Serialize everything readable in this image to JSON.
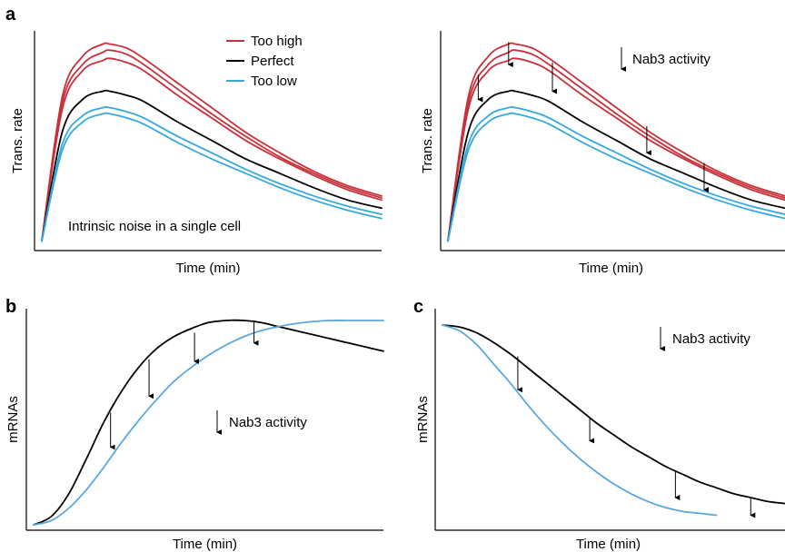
{
  "colors": {
    "too_high": "#c8313a",
    "perfect": "#000000",
    "too_low": "#35a8de",
    "reduced": "#5aa7dc",
    "axis": "#000000"
  },
  "chart_data": [
    {
      "panel": "a",
      "type": "line",
      "xlabel": "Time (min)",
      "ylabel": "Trans. rate",
      "legend_position": "top-right",
      "legend": [
        {
          "label": "Too high",
          "color": "#c8313a"
        },
        {
          "label": "Perfect",
          "color": "#000000"
        },
        {
          "label": "Too low",
          "color": "#35a8de"
        }
      ],
      "annotation": "Intrinsic noise in a single cell",
      "x_range": [
        0,
        1
      ],
      "y_range": [
        0,
        1
      ],
      "series": [
        {
          "group": "Too high",
          "color": "#c8313a",
          "x": [
            0,
            0.06,
            0.12,
            0.18,
            0.2,
            0.25,
            0.3,
            0.4,
            0.5,
            0.6,
            0.7,
            0.8,
            0.9,
            1.0
          ],
          "y": [
            0.02,
            0.72,
            0.92,
            0.98,
            0.98,
            0.96,
            0.91,
            0.79,
            0.67,
            0.55,
            0.45,
            0.36,
            0.29,
            0.24
          ]
        },
        {
          "group": "Too high",
          "color": "#c8313a",
          "x": [
            0,
            0.06,
            0.12,
            0.18,
            0.2,
            0.25,
            0.3,
            0.4,
            0.5,
            0.6,
            0.7,
            0.8,
            0.9,
            1.0
          ],
          "y": [
            0.02,
            0.69,
            0.88,
            0.94,
            0.95,
            0.93,
            0.88,
            0.76,
            0.64,
            0.53,
            0.43,
            0.35,
            0.28,
            0.23
          ]
        },
        {
          "group": "Too high",
          "color": "#c8313a",
          "x": [
            0,
            0.06,
            0.12,
            0.18,
            0.2,
            0.25,
            0.3,
            0.4,
            0.5,
            0.6,
            0.7,
            0.8,
            0.9,
            1.0
          ],
          "y": [
            0.02,
            0.66,
            0.85,
            0.9,
            0.91,
            0.89,
            0.85,
            0.73,
            0.62,
            0.51,
            0.42,
            0.34,
            0.27,
            0.22
          ]
        },
        {
          "group": "Perfect",
          "color": "#000000",
          "x": [
            0,
            0.06,
            0.12,
            0.18,
            0.2,
            0.25,
            0.3,
            0.4,
            0.5,
            0.6,
            0.7,
            0.8,
            0.9,
            1.0
          ],
          "y": [
            0.02,
            0.55,
            0.71,
            0.75,
            0.75,
            0.73,
            0.7,
            0.6,
            0.51,
            0.42,
            0.35,
            0.28,
            0.22,
            0.18
          ]
        },
        {
          "group": "Too low",
          "color": "#35a8de",
          "x": [
            0,
            0.06,
            0.12,
            0.18,
            0.2,
            0.25,
            0.3,
            0.4,
            0.5,
            0.6,
            0.7,
            0.8,
            0.9,
            1.0
          ],
          "y": [
            0.02,
            0.49,
            0.63,
            0.67,
            0.67,
            0.65,
            0.62,
            0.53,
            0.45,
            0.37,
            0.3,
            0.24,
            0.19,
            0.15
          ]
        },
        {
          "group": "Too low",
          "color": "#35a8de",
          "x": [
            0,
            0.06,
            0.12,
            0.18,
            0.2,
            0.25,
            0.3,
            0.4,
            0.5,
            0.6,
            0.7,
            0.8,
            0.9,
            1.0
          ],
          "y": [
            0.02,
            0.46,
            0.6,
            0.64,
            0.64,
            0.62,
            0.59,
            0.5,
            0.42,
            0.35,
            0.28,
            0.22,
            0.17,
            0.13
          ]
        }
      ]
    },
    {
      "panel": "a-right",
      "type": "line",
      "xlabel": "Time (min)",
      "ylabel": "Trans. rate",
      "annotation": "Nab3 activity",
      "x_range": [
        0,
        1
      ],
      "y_range": [
        0,
        1
      ],
      "series": [
        {
          "group": "Too high",
          "color": "#c8313a",
          "x": [
            0,
            0.06,
            0.12,
            0.18,
            0.2,
            0.25,
            0.3,
            0.4,
            0.5,
            0.6,
            0.7,
            0.8,
            0.9,
            1.0
          ],
          "y": [
            0.02,
            0.72,
            0.92,
            0.98,
            0.98,
            0.96,
            0.91,
            0.79,
            0.67,
            0.55,
            0.45,
            0.36,
            0.29,
            0.24
          ]
        },
        {
          "group": "Too high",
          "color": "#c8313a",
          "x": [
            0,
            0.06,
            0.12,
            0.18,
            0.2,
            0.25,
            0.3,
            0.4,
            0.5,
            0.6,
            0.7,
            0.8,
            0.9,
            1.0
          ],
          "y": [
            0.02,
            0.69,
            0.88,
            0.94,
            0.95,
            0.93,
            0.88,
            0.76,
            0.64,
            0.53,
            0.43,
            0.35,
            0.28,
            0.23
          ]
        },
        {
          "group": "Too high",
          "color": "#c8313a",
          "x": [
            0,
            0.06,
            0.12,
            0.18,
            0.2,
            0.25,
            0.3,
            0.4,
            0.5,
            0.6,
            0.7,
            0.8,
            0.9,
            1.0
          ],
          "y": [
            0.02,
            0.66,
            0.85,
            0.9,
            0.91,
            0.89,
            0.85,
            0.73,
            0.62,
            0.51,
            0.42,
            0.34,
            0.27,
            0.22
          ]
        },
        {
          "group": "Perfect",
          "color": "#000000",
          "x": [
            0,
            0.06,
            0.12,
            0.18,
            0.2,
            0.25,
            0.3,
            0.4,
            0.5,
            0.6,
            0.7,
            0.8,
            0.9,
            1.0
          ],
          "y": [
            0.02,
            0.55,
            0.71,
            0.75,
            0.75,
            0.73,
            0.7,
            0.6,
            0.51,
            0.42,
            0.35,
            0.28,
            0.22,
            0.18
          ]
        },
        {
          "group": "Too low",
          "color": "#35a8de",
          "x": [
            0,
            0.06,
            0.12,
            0.18,
            0.2,
            0.25,
            0.3,
            0.4,
            0.5,
            0.6,
            0.7,
            0.8,
            0.9,
            1.0
          ],
          "y": [
            0.02,
            0.49,
            0.63,
            0.67,
            0.67,
            0.65,
            0.62,
            0.53,
            0.45,
            0.37,
            0.3,
            0.24,
            0.19,
            0.15
          ]
        },
        {
          "group": "Too low",
          "color": "#35a8de",
          "x": [
            0,
            0.06,
            0.12,
            0.18,
            0.2,
            0.25,
            0.3,
            0.4,
            0.5,
            0.6,
            0.7,
            0.8,
            0.9,
            1.0
          ],
          "y": [
            0.02,
            0.46,
            0.6,
            0.64,
            0.64,
            0.62,
            0.59,
            0.5,
            0.42,
            0.35,
            0.28,
            0.22,
            0.17,
            0.13
          ]
        }
      ],
      "arrows": [
        {
          "x": 0.09,
          "y_from": 0.83,
          "y_to": 0.71
        },
        {
          "x": 0.18,
          "y_from": 0.99,
          "y_to": 0.88
        },
        {
          "x": 0.31,
          "y_from": 0.89,
          "y_to": 0.75
        },
        {
          "x": 0.59,
          "y_from": 0.58,
          "y_to": 0.45
        },
        {
          "x": 0.76,
          "y_from": 0.4,
          "y_to": 0.27
        }
      ]
    },
    {
      "panel": "b",
      "type": "line",
      "xlabel": "Time (min)",
      "ylabel": "mRNAs",
      "annotation": "Nab3 activity",
      "x_range": [
        0,
        1
      ],
      "y_range": [
        0,
        1
      ],
      "series": [
        {
          "color": "#000000",
          "x": [
            0,
            0.05,
            0.1,
            0.15,
            0.2,
            0.25,
            0.3,
            0.35,
            0.4,
            0.45,
            0.5,
            0.55,
            0.6,
            0.65,
            0.7,
            0.75,
            0.8,
            0.85,
            0.9,
            0.95,
            1.0
          ],
          "y": [
            0,
            0.04,
            0.15,
            0.32,
            0.5,
            0.65,
            0.77,
            0.86,
            0.92,
            0.96,
            0.99,
            1.0,
            1.0,
            0.99,
            0.97,
            0.95,
            0.93,
            0.91,
            0.89,
            0.87,
            0.85
          ]
        },
        {
          "color": "#5aa7dc",
          "x": [
            0,
            0.05,
            0.1,
            0.15,
            0.2,
            0.25,
            0.3,
            0.35,
            0.4,
            0.45,
            0.5,
            0.55,
            0.6,
            0.65,
            0.7,
            0.75,
            0.8,
            0.85,
            0.9,
            0.95,
            1.0
          ],
          "y": [
            0,
            0.02,
            0.08,
            0.17,
            0.28,
            0.4,
            0.51,
            0.61,
            0.7,
            0.77,
            0.83,
            0.88,
            0.92,
            0.95,
            0.97,
            0.985,
            0.995,
            1.0,
            1.0,
            1.0,
            1.0
          ]
        }
      ],
      "arrows": [
        {
          "x": 0.22,
          "y_from": 0.55,
          "y_to": 0.38
        },
        {
          "x": 0.33,
          "y_from": 0.81,
          "y_to": 0.63
        },
        {
          "x": 0.46,
          "y_from": 0.94,
          "y_to": 0.8
        },
        {
          "x": 0.63,
          "y_from": 1.0,
          "y_to": 0.89
        }
      ]
    },
    {
      "panel": "c",
      "type": "line",
      "xlabel": "Time (min)",
      "ylabel": "mRNAs",
      "annotation": "Nab3 activity",
      "x_range": [
        0,
        1
      ],
      "y_range": [
        0,
        1
      ],
      "series": [
        {
          "color": "#000000",
          "x": [
            0,
            0.05,
            0.1,
            0.15,
            0.2,
            0.25,
            0.3,
            0.35,
            0.4,
            0.45,
            0.5,
            0.55,
            0.6,
            0.65,
            0.7,
            0.75,
            0.8,
            0.85,
            0.9,
            0.95,
            1.0
          ],
          "y": [
            1.0,
            0.99,
            0.96,
            0.91,
            0.85,
            0.78,
            0.71,
            0.64,
            0.57,
            0.5,
            0.44,
            0.38,
            0.33,
            0.28,
            0.24,
            0.2,
            0.17,
            0.14,
            0.12,
            0.1,
            0.09
          ]
        },
        {
          "color": "#5aa7dc",
          "x": [
            0,
            0.05,
            0.1,
            0.15,
            0.2,
            0.25,
            0.3,
            0.35,
            0.4,
            0.45,
            0.5,
            0.55,
            0.6,
            0.65,
            0.7,
            0.75,
            0.8
          ],
          "y": [
            1.0,
            0.97,
            0.9,
            0.8,
            0.7,
            0.59,
            0.49,
            0.4,
            0.32,
            0.25,
            0.19,
            0.14,
            0.1,
            0.07,
            0.05,
            0.04,
            0.03
          ]
        }
      ],
      "arrows": [
        {
          "x": 0.22,
          "y_from": 0.84,
          "y_to": 0.67
        },
        {
          "x": 0.43,
          "y_from": 0.53,
          "y_to": 0.41
        },
        {
          "x": 0.68,
          "y_from": 0.26,
          "y_to": 0.12
        },
        {
          "x": 0.9,
          "y_from": 0.12,
          "y_to": 0.03
        }
      ]
    }
  ],
  "labels": {
    "panel_a": "a",
    "panel_b": "b",
    "panel_c": "c"
  }
}
